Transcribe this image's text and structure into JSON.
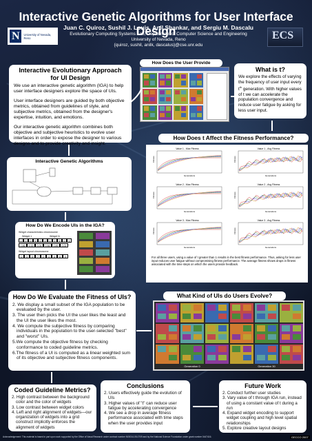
{
  "header": {
    "title": "Interactive Genetic Algorithms for User Interface Design",
    "authors": "Juan C. Quiroz, Sushil J. Louis, Anil Shankar, and Sergiu M. Dascalu",
    "affiliation_lines": [
      "Evolutionary Computing Systems Lab, Department of Computer Science and Engineering",
      "University of Nevada, Reno",
      "{quiroz, sushil, anilk, dascalus}@cse.unr.edu"
    ],
    "logo_left": {
      "mark": "N",
      "line1": "University of Nevada, Reno",
      "line2": ""
    },
    "logo_right": {
      "mark": "ECS",
      "line1": ""
    }
  },
  "sections": {
    "iea": {
      "title": "Interactive Evolutionary Approach for UI Design",
      "paragraphs": [
        "We use an interactive genetic algorithm (IGA) to help user interface designers explore the space of UIs.",
        "User interface designers are guided by both objective metrics, obtained from guidelines of style, and subjective metrics, obtained from the designer's expertise, intuition, and emotions.",
        "Our interactive genetic algorithm combines both objective and subjective heuristics to evolve user interfaces in order to expose the designer to various designs and to provide creativity and insight."
      ]
    },
    "iga": {
      "title": "Interactive Genetic Algorithms"
    },
    "encode": {
      "title": "How Do We Encode UIs in the IGA?",
      "chromosome_label": "Widget characteristics chromosome",
      "widget1": "Widget 1",
      "widgetN": "Widget N",
      "cells_top": [
        "1",
        "0",
        "0",
        "1",
        "0",
        "1",
        "0",
        "1",
        "1",
        "0",
        "1"
      ],
      "cells_bottom": [
        "0.86",
        "1.00",
        "0.06",
        "0.56",
        "0.89",
        "0.02"
      ],
      "layout_label": "Widget layout chromosome",
      "layout_cells": [
        "1",
        "3",
        "5",
        "7",
        "2",
        "4",
        "6",
        "8",
        "9"
      ]
    },
    "feedback": {
      "title": "How Does the User Provide Feedback?"
    },
    "what_is_t": {
      "title": "What is t?",
      "text_before": "We explore the effects of varying the frequency of user input every t",
      "superscript": "th",
      "text_after": " generation. With higher values of t we can accelerate the population convergence and reduce user fatigue by asking for less user input."
    },
    "fitness": {
      "title": "How Does t Affect the Fitness Performance?",
      "caption": "For all three users, using a value of t greater than 1 results in the best fitness performance. Thus, asking for less user input reduces user fatigue without compromising fitness performance. The average fitness shows drops in fitness associated with the time steps on which the users provide feedback.",
      "plot_titles": [
        "Value 1 - Max Fitness",
        "Value 1 - Avg Fitness",
        "Value 2 - Max Fitness",
        "Value 2 - Avg Fitness",
        "Value 3 - Max Fitness",
        "Value 3 - Avg Fitness"
      ],
      "ylabel": "Fitness",
      "xlabel": "Generations"
    },
    "evaluate": {
      "title": "How Do We Evaluate the Fitness of UIs?",
      "items": [
        "2. We display a small subset of the IGA population to be evaluated by the user.",
        "3. The user then picks the UI the user likes the least and the UI the user likes the most.",
        "4. We compute the subjective fitness by comparing individuals in the population to the user-selected \"best\" and \"worst\" UIs.",
        "5.We compute the objective fitness by checking conformance to coded guideline metrics.",
        "6.The fitness of a UI is computed as a linear weighted sum of its objective and subjective fitness components."
      ]
    },
    "kinds": {
      "title": "What Kind of UIs do Users Evolve?",
      "label_left": "Generation 0",
      "label_right": "Generation 30"
    },
    "guidelines": {
      "title": "Coded Guideline Metrics?",
      "items": [
        "2. High contrast between the background color and the color of widgets",
        "3. Low contrast between widget colors",
        "4. Left and right alignment of widgets—our organization of widgets into a grid construct implicitly enforces the alignment of widgets"
      ]
    },
    "conclusions": {
      "title": "Conclusions",
      "items": [
        "2. Users effectively guide the evolution of UIs",
        "3. Higher values of \"t\" can reduce user fatigue by accelerating convergence",
        "4. We see a drop in average fitness performance associated with time steps when the user provides input"
      ]
    },
    "future": {
      "title": "Future Work",
      "items": [
        "2. Conduct further user studies",
        "3. Vary value of t through IGA run, instead of using a constant value of t during a run",
        "4. Expand widget encoding to support widget coupling and high level spatial relationships",
        "5. Explore creative layout designs"
      ]
    }
  },
  "footer": {
    "acknowledgement": "Acknowledgement: This material is based in part upon work supported by the Office of Naval Research under contract number N00014-05-0709 and by the National Science Foundation under grant number 0447416.",
    "code": "GECCO 2007"
  },
  "colors": {
    "background": "#121a2c",
    "box": "#ffffff",
    "max_series": [
      "#d93a3a",
      "#3a8a3a",
      "#3a5ad9",
      "#b06ad0",
      "#e0a030"
    ],
    "ui_palette": [
      "#4a8a3a",
      "#8a3a9a",
      "#c0a030",
      "#3a6ab0",
      "#c04a4a",
      "#5aa0a0",
      "#9ab040",
      "#d07a30"
    ]
  }
}
